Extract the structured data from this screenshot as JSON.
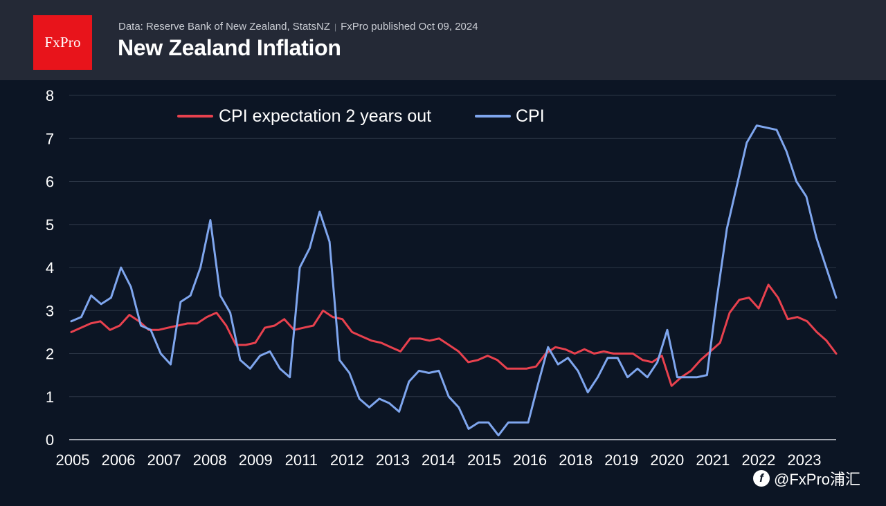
{
  "header": {
    "brand": "FxPro",
    "source": "Data: Reserve Bank of New Zealand, StatsNZ",
    "published": "FxPro published Oct 09, 2024",
    "title": "New Zealand Inflation"
  },
  "watermark": {
    "text": "@FxPro浦汇",
    "icon": "f"
  },
  "colors": {
    "header_bg": "#242936",
    "brand": "#e8141b",
    "background": "#0c1524"
  },
  "chart_data": {
    "type": "line",
    "title": "New Zealand Inflation",
    "xlabel": "",
    "ylabel": "",
    "ylim": [
      0,
      8
    ],
    "y_ticks": [
      "0",
      "1",
      "2",
      "3",
      "4",
      "5",
      "6",
      "7",
      "8"
    ],
    "x_tick_labels": [
      "2005",
      "2006",
      "2007",
      "2008",
      "2009",
      "2011",
      "2012",
      "2013",
      "2014",
      "2015",
      "2016",
      "2018",
      "2019",
      "2020",
      "2021",
      "2022",
      "2023"
    ],
    "grid": true,
    "legend_position": "top-left",
    "series": [
      {
        "name": "CPI expectation 2 years out",
        "color": "#e8414e",
        "values": [
          2.5,
          2.6,
          2.7,
          2.75,
          2.55,
          2.65,
          2.9,
          2.75,
          2.55,
          2.55,
          2.6,
          2.65,
          2.7,
          2.7,
          2.85,
          2.95,
          2.65,
          2.2,
          2.2,
          2.25,
          2.6,
          2.65,
          2.8,
          2.55,
          2.6,
          2.65,
          3.0,
          2.85,
          2.8,
          2.5,
          2.4,
          2.3,
          2.25,
          2.15,
          2.05,
          2.35,
          2.35,
          2.3,
          2.35,
          2.2,
          2.05,
          1.8,
          1.85,
          1.95,
          1.85,
          1.65,
          1.65,
          1.65,
          1.7,
          2.0,
          2.15,
          2.1,
          2.0,
          2.1,
          2.0,
          2.05,
          2.0,
          2.0,
          2.0,
          1.85,
          1.8,
          1.95,
          1.25,
          1.45,
          1.6,
          1.85,
          2.05,
          2.25,
          2.95,
          3.25,
          3.3,
          3.05,
          3.6,
          3.3,
          2.8,
          2.85,
          2.75,
          2.5,
          2.3,
          2.0
        ]
      },
      {
        "name": "CPI",
        "color": "#7fa6ee",
        "values": [
          2.75,
          2.85,
          3.35,
          3.15,
          3.3,
          4.0,
          3.55,
          2.65,
          2.55,
          2.0,
          1.75,
          3.2,
          3.35,
          4.0,
          5.1,
          3.35,
          2.95,
          1.85,
          1.65,
          1.95,
          2.05,
          1.65,
          1.45,
          4.0,
          4.45,
          5.3,
          4.6,
          1.85,
          1.55,
          0.95,
          0.75,
          0.95,
          0.85,
          0.65,
          1.35,
          1.6,
          1.55,
          1.6,
          1.0,
          0.75,
          0.25,
          0.4,
          0.4,
          0.1,
          0.4,
          0.4,
          0.4,
          1.3,
          2.15,
          1.75,
          1.9,
          1.6,
          1.1,
          1.45,
          1.9,
          1.9,
          1.45,
          1.65,
          1.45,
          1.8,
          2.55,
          1.45,
          1.45,
          1.45,
          1.5,
          3.3,
          4.9,
          5.9,
          6.9,
          7.3,
          7.25,
          7.2,
          6.7,
          6.0,
          5.65,
          4.7,
          4.0,
          3.3
        ]
      }
    ]
  }
}
